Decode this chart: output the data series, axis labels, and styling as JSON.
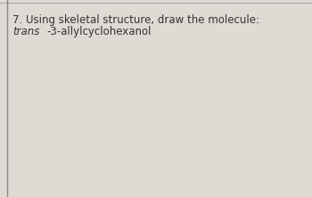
{
  "title_line1": "7. Using skeletal structure, draw the molecule:",
  "title_line2_italic": "trans",
  "title_line2_normal": "-3-allylcyclohexanol",
  "background_color": "#dedad4",
  "text_color": "#333333",
  "font_size": 8.5,
  "left_border_color": "#888888",
  "top_border_color": "#aaaaaa"
}
